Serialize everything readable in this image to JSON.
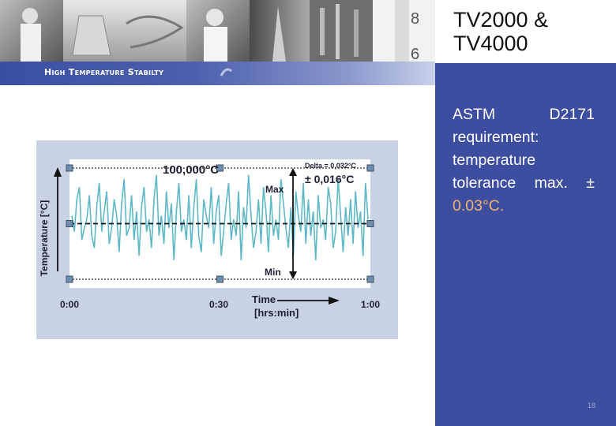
{
  "slide": {
    "product_title": "TV2000 & TV4000",
    "section_title": "High Temperature Stabilty",
    "requirement_text": "ASTM  D2171 requirement: temperature tolerance max. ±",
    "requirement_tolerance": "0.03°C.",
    "page_number": "18"
  },
  "colors": {
    "accent_blue": "#3d4ea0",
    "trace": "#5fb8c6",
    "chart_background": "#c8d2e4",
    "tolerance_text": "#f2b26e"
  },
  "chart_data": {
    "type": "line",
    "ylabel": "Temperature [°C]",
    "xlabel_line1": "Time",
    "xlabel_line2": "[hrs:min]",
    "x_ticks": [
      "0:00",
      "0:30",
      "1:00"
    ],
    "xlim_minutes": [
      0,
      60
    ],
    "setpoint_label": "100,000°C",
    "setpoint_c": 100.0,
    "delta_label": "Delta = 0,032°C",
    "tolerance_label": "± 0,016°C",
    "max_label": "Max",
    "min_label": "Min",
    "max_c": 100.016,
    "min_c": 99.984,
    "ylim_c": [
      99.9815,
      100.0185
    ],
    "grid": false,
    "series": [
      {
        "values_c": [
          100.0023,
          99.9977,
          100.007,
          100.0105,
          99.9953,
          99.9988,
          100.0012,
          100.0082,
          99.9965,
          99.993,
          100.0047,
          100.0117,
          99.9977,
          100.0035,
          100.0093,
          99.9942,
          99.9988,
          100.007,
          100.0023,
          99.9918,
          100.0058,
          100.0128,
          99.9965,
          99.9988,
          100.0082,
          99.9953,
          100.0035,
          99.9907,
          100.0047,
          100.0105,
          99.9977,
          100.0012,
          99.993,
          100.007,
          100.014,
          99.9965,
          100.0023,
          99.9942,
          100.0093,
          99.9988,
          100.0058,
          99.9895,
          100.0035,
          100.0117,
          99.9977,
          100.0012,
          99.9953,
          100.0082,
          99.993,
          100.0047,
          100.0128,
          99.9965,
          99.9918,
          100.007,
          100.0023,
          99.9988,
          100.0105,
          99.9942,
          100.0035,
          100.0082,
          99.9907,
          99.9977,
          100.0058,
          100.0117,
          99.9953,
          100.0012,
          99.9965,
          100.0093,
          99.9895,
          100.0047,
          99.9988,
          100.014,
          100.0023,
          99.993,
          99.9977,
          100.007,
          99.9942,
          100.0105,
          100.0035,
          99.9918,
          100.0082,
          99.9965,
          100.0012,
          99.9953,
          100.0128,
          100.0058,
          99.9988,
          99.993,
          100.0047,
          99.9907,
          100.0093,
          100.0023,
          99.9977,
          100.0117,
          99.9942,
          100.007,
          99.9965,
          100.0035,
          99.9895,
          100.0082,
          99.9988,
          100.0012,
          99.9953,
          100.0105,
          100.0058,
          99.993,
          99.9977,
          100.0128,
          100.0023,
          99.9918,
          100.0047,
          99.9965,
          100.007,
          99.9942,
          100.0093,
          99.9988,
          100.0035,
          99.9907,
          100.0117,
          100.0012
        ]
      }
    ]
  }
}
